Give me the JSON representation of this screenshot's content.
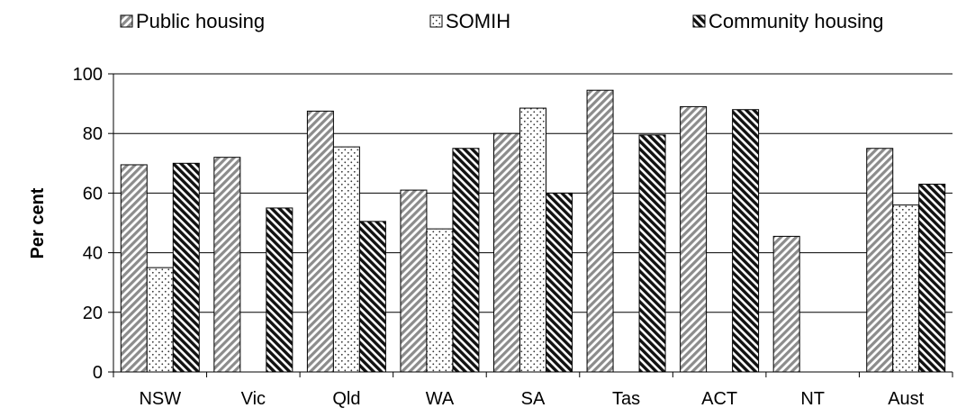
{
  "chart_data": {
    "type": "bar",
    "title": "",
    "xlabel": "",
    "ylabel": "Per cent",
    "ylim": [
      0,
      100
    ],
    "yticks": [
      0,
      20,
      40,
      60,
      80,
      100
    ],
    "grid": true,
    "legend_position": "top",
    "categories": [
      "NSW",
      "Vic",
      "Qld",
      "WA",
      "SA",
      "Tas",
      "ACT",
      "NT",
      "Aust"
    ],
    "series": [
      {
        "name": "Public housing",
        "pattern": "diagonal-light",
        "values": [
          69.5,
          72,
          87.5,
          61,
          80,
          94.5,
          89,
          45.5,
          75
        ]
      },
      {
        "name": "SOMIH",
        "pattern": "dots",
        "values": [
          35,
          null,
          75.5,
          48,
          88.5,
          null,
          null,
          null,
          56
        ]
      },
      {
        "name": "Community housing",
        "pattern": "diagonal-dark",
        "values": [
          70,
          55,
          50.5,
          75,
          60,
          79.5,
          88,
          null,
          63
        ]
      }
    ]
  }
}
